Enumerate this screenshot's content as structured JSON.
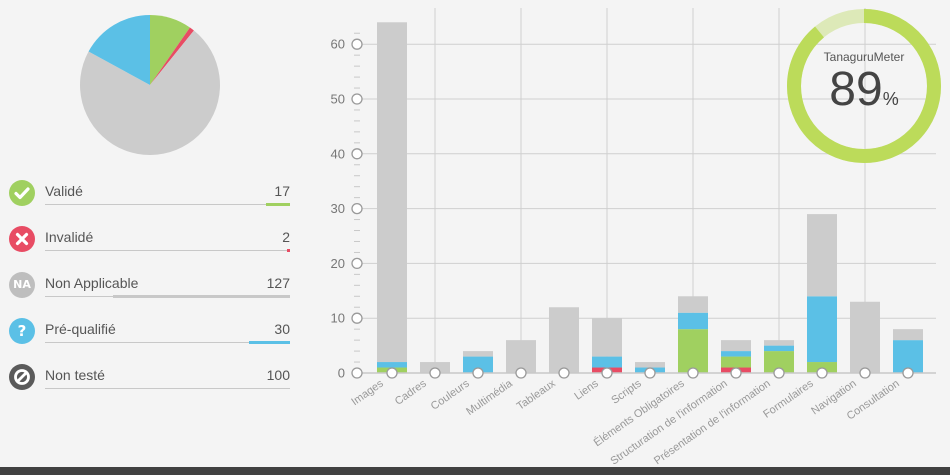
{
  "legend": {
    "items": [
      {
        "label": "Validé",
        "count": "17",
        "icon": "check-icon",
        "color": "#a0d060"
      },
      {
        "label": "Invalidé",
        "count": "2",
        "icon": "cross-icon",
        "color": "#e84c64"
      },
      {
        "label": "Non Applicable",
        "count": "127",
        "icon": "na-icon",
        "icon_text": "NA",
        "color": "#bebebe"
      },
      {
        "label": "Pré-qualifié",
        "count": "30",
        "icon": "question-icon",
        "icon_text": "?",
        "color": "#5bc0e6"
      },
      {
        "label": "Non testé",
        "count": "100",
        "icon": "forbidden-icon",
        "color": "#5a5a5a"
      }
    ]
  },
  "meter": {
    "title": "TanaguruMeter",
    "value": "89",
    "unit": "%",
    "color": "#bcdb5a",
    "track_color": "#dde9b8"
  },
  "chart_data": [
    {
      "type": "pie",
      "title": "",
      "categories": [
        "Validé",
        "Invalidé",
        "Non Applicable",
        "Pré-qualifié"
      ],
      "values": [
        17,
        2,
        127,
        30
      ],
      "colors": [
        "#a0d060",
        "#e84c64",
        "#cccccc",
        "#5bc0e6"
      ]
    },
    {
      "type": "bar",
      "stacked": true,
      "title": "",
      "xlabel": "",
      "ylabel": "",
      "ylim": [
        0,
        64
      ],
      "yticks": [
        0,
        10,
        20,
        30,
        40,
        50,
        60
      ],
      "grid": true,
      "categories": [
        "Images",
        "Cadres",
        "Couleurs",
        "Multimédia",
        "Tableaux",
        "Liens",
        "Scripts",
        "Éléments Obligatoires",
        "Structuration de l'information",
        "Présentation de l'information",
        "Formulaires",
        "Navigation",
        "Consultation"
      ],
      "series": [
        {
          "name": "Invalidé",
          "color": "#e84c64",
          "values": [
            0,
            0,
            0,
            0,
            0,
            1,
            0,
            0,
            1,
            0,
            0,
            0,
            0
          ]
        },
        {
          "name": "Validé",
          "color": "#a0d060",
          "values": [
            1,
            0,
            0,
            0,
            0,
            0,
            0,
            8,
            2,
            4,
            2,
            0,
            0
          ]
        },
        {
          "name": "Pré-qualifié",
          "color": "#5bc0e6",
          "values": [
            1,
            0,
            3,
            0,
            0,
            2,
            1,
            3,
            1,
            1,
            12,
            0,
            6
          ]
        },
        {
          "name": "Non Applicable",
          "color": "#cccccc",
          "values": [
            62,
            2,
            1,
            6,
            12,
            7,
            1,
            3,
            2,
            1,
            15,
            13,
            2
          ]
        }
      ]
    }
  ]
}
